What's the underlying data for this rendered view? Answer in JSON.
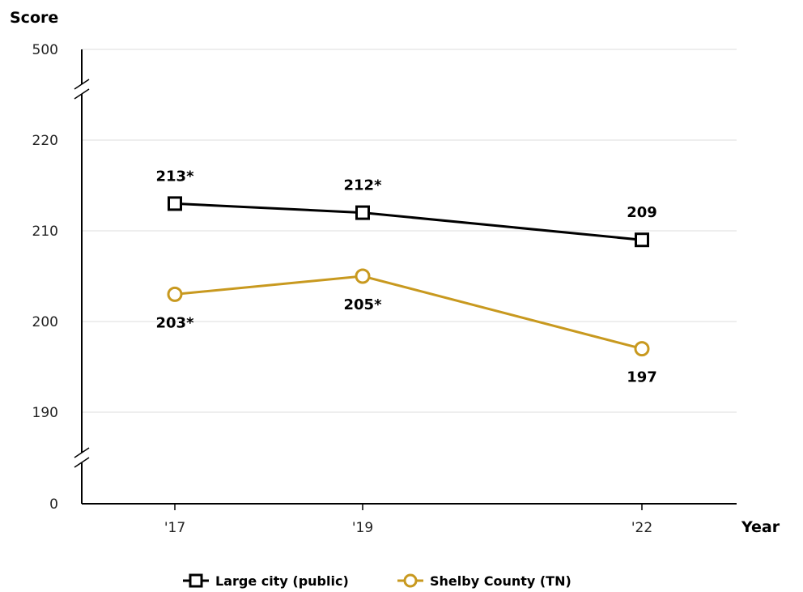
{
  "chart_data": {
    "type": "line",
    "ylabel": "Score",
    "xlabel": "Year",
    "y_axis_break": {
      "axis_ticks_bottom": [
        0
      ],
      "axis_ticks_main": [
        190,
        200,
        210,
        220
      ],
      "axis_ticks_top": [
        500
      ]
    },
    "yticks": [
      "0",
      "190",
      "200",
      "210",
      "220",
      "500"
    ],
    "categories": [
      "'17",
      "'19",
      "'22"
    ],
    "x_years": [
      2017,
      2019,
      2022
    ],
    "grid": true,
    "legend_position": "bottom",
    "series": [
      {
        "name": "Large city (public)",
        "values": [
          213,
          212,
          209
        ],
        "labels": [
          "213*",
          "212*",
          "209"
        ],
        "color": "#000000",
        "marker": "square"
      },
      {
        "name": "Shelby County (TN)",
        "values": [
          203,
          205,
          197
        ],
        "labels": [
          "203*",
          "205*",
          "197"
        ],
        "color": "#c8991f",
        "marker": "circle"
      }
    ]
  }
}
